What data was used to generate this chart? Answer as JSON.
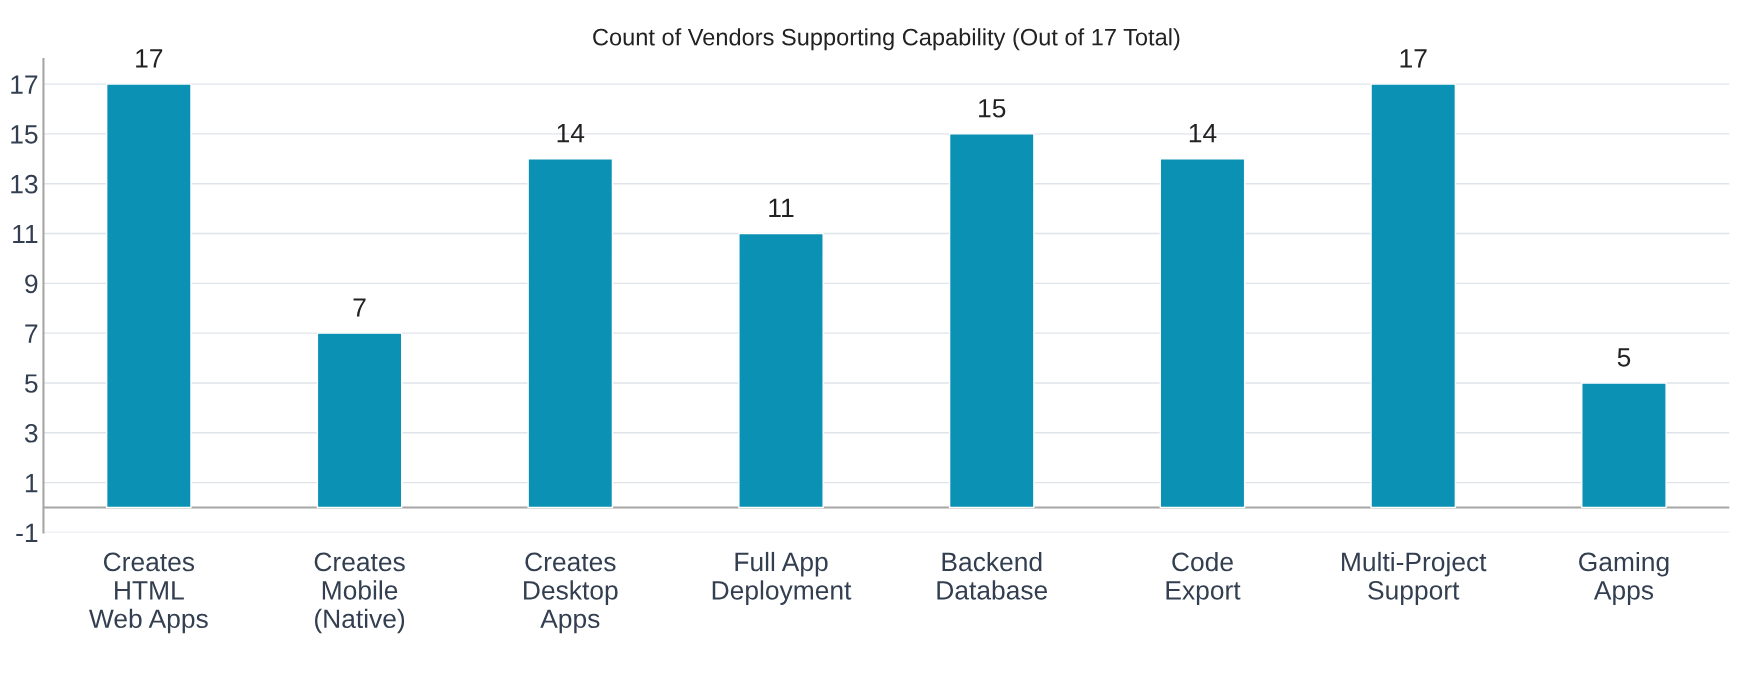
{
  "chart_data": {
    "type": "bar",
    "title": "Count of Vendors Supporting Capability (Out of 17 Total)",
    "categories": [
      "Creates\nHTML\nWeb Apps",
      "Creates\nMobile\n(Native)",
      "Creates\nDesktop\nApps",
      "Full App\nDeployment",
      "Backend\nDatabase",
      "Code\nExport",
      "Multi-Project\nSupport",
      "Gaming\nApps"
    ],
    "values": [
      17,
      7,
      14,
      11,
      15,
      14,
      17,
      5
    ],
    "color": "#0a91b3",
    "ylim": [
      -1,
      18
    ],
    "yticks": [
      -1,
      1,
      3,
      5,
      7,
      9,
      11,
      13,
      15,
      17
    ],
    "grid": "y",
    "data_labels": true
  }
}
